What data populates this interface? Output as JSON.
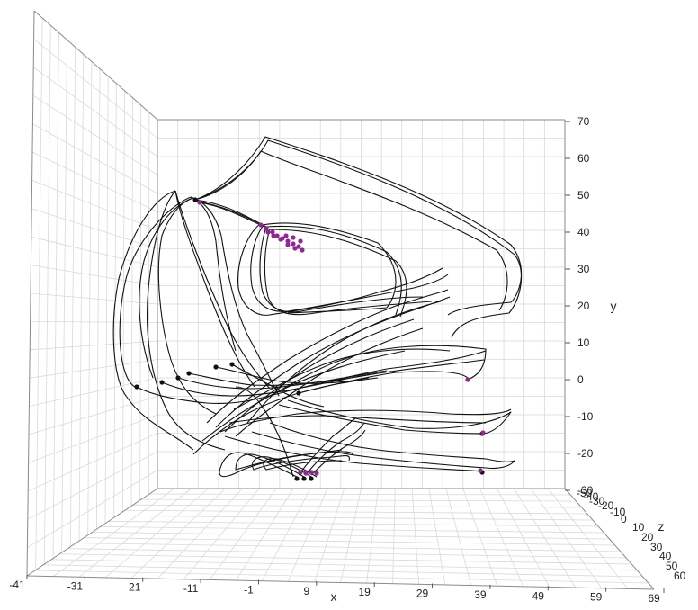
{
  "chart_data": {
    "type": "line",
    "title": "",
    "axes": {
      "x": {
        "label": "x",
        "ticks": [
          "-41",
          "-31",
          "-21",
          "-11",
          "-1",
          "9",
          "19",
          "29",
          "39",
          "49",
          "59",
          "69"
        ]
      },
      "y": {
        "label": "y",
        "ticks": [
          "-30",
          "-20",
          "-10",
          "0",
          "10",
          "20",
          "30",
          "40",
          "50",
          "60",
          "70"
        ]
      },
      "z": {
        "label": "z",
        "ticks": [
          "-50",
          "-40",
          "-30",
          "-20",
          "-10",
          "0",
          "10",
          "20",
          "30",
          "40",
          "50",
          "60"
        ]
      }
    },
    "grid": true,
    "colors": {
      "curves": "#111111",
      "endpoints": "#8e2a8e",
      "start_points": "#111111",
      "grid": "#d9d9d9"
    }
  }
}
